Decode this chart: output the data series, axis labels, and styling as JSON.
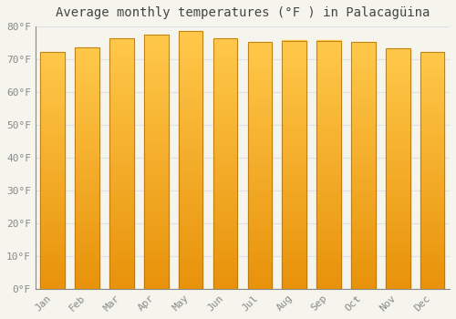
{
  "title": "Average monthly temperatures (°F ) in Palacagüina",
  "months": [
    "Jan",
    "Feb",
    "Mar",
    "Apr",
    "May",
    "Jun",
    "Jul",
    "Aug",
    "Sep",
    "Oct",
    "Nov",
    "Dec"
  ],
  "values": [
    72.1,
    73.5,
    76.5,
    77.5,
    78.5,
    76.5,
    75.3,
    75.7,
    75.7,
    75.3,
    73.4,
    72.3
  ],
  "ylim": [
    0,
    80
  ],
  "yticks": [
    0,
    10,
    20,
    30,
    40,
    50,
    60,
    70,
    80
  ],
  "ytick_labels": [
    "0°F",
    "10°F",
    "20°F",
    "30°F",
    "40°F",
    "50°F",
    "60°F",
    "70°F",
    "80°F"
  ],
  "bar_color_bottom": "#E8920A",
  "bar_color_top": "#FFC84A",
  "bar_edge_color": "#B8760A",
  "background_color": "#F5F5EE",
  "plot_bg_color": "#F5F5EE",
  "grid_color": "#E0E0E8",
  "title_fontsize": 10,
  "tick_fontsize": 8,
  "tick_color": "#888888",
  "axis_color": "#888888"
}
